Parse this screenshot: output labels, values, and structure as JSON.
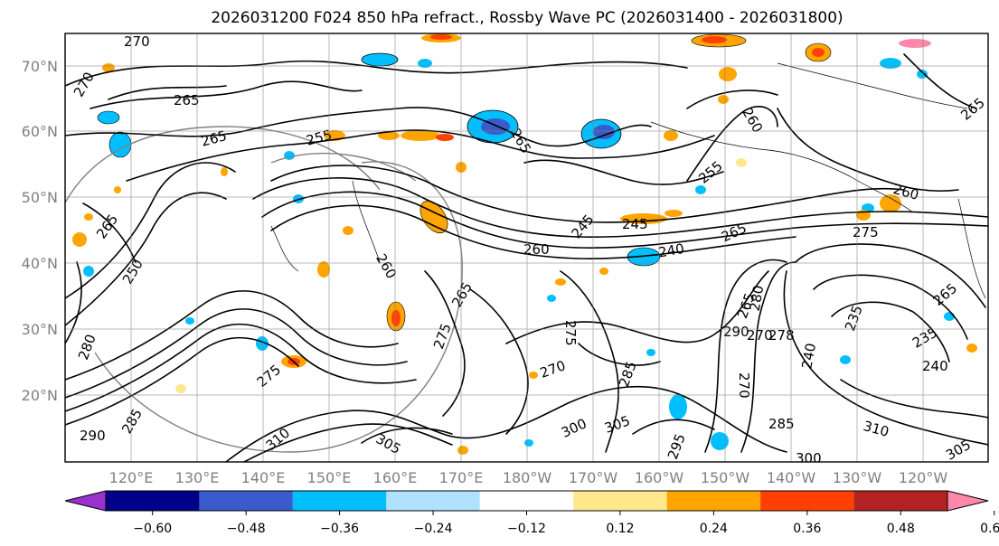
{
  "title": "2026031200 F024 850 hPa refract., Rossby Wave PC (2026031400 - 2026031800)",
  "lat_labels": [
    "70°N",
    "60°N",
    "50°N",
    "40°N",
    "30°N",
    "20°N"
  ],
  "lon_labels": [
    "120°E",
    "130°E",
    "140°E",
    "150°E",
    "160°E",
    "170°E",
    "180°W",
    "170°W",
    "160°W",
    "150°W",
    "140°W",
    "130°W",
    "120°W"
  ],
  "colorbar": {
    "colors": [
      "#9932cc",
      "#00008b",
      "#3a5bcc",
      "#00bfff",
      "#b0e2ff",
      "#ffffff",
      "#ffe88c",
      "#ffa500",
      "#ff4000",
      "#b22222",
      "#ff88aa"
    ],
    "tick_labels": [
      "−0.60",
      "−0.48",
      "−0.36",
      "−0.24",
      "−0.12",
      "0.12",
      "0.24",
      "0.36",
      "0.48",
      "0.60"
    ]
  },
  "contour_labels": [
    "270",
    "270",
    "265",
    "265",
    "255",
    "255",
    "260",
    "260",
    "265",
    "265",
    "265",
    "250",
    "245",
    "245",
    "240",
    "260",
    "275",
    "275",
    "260",
    "265",
    "265",
    "265",
    "265",
    "275",
    "270",
    "280",
    "290",
    "270",
    "278",
    "235",
    "235",
    "240",
    "240",
    "285",
    "300",
    "305",
    "295",
    "305",
    "310",
    "290",
    "280",
    "275",
    "270",
    "300",
    "285",
    "310",
    "305",
    "285"
  ]
}
